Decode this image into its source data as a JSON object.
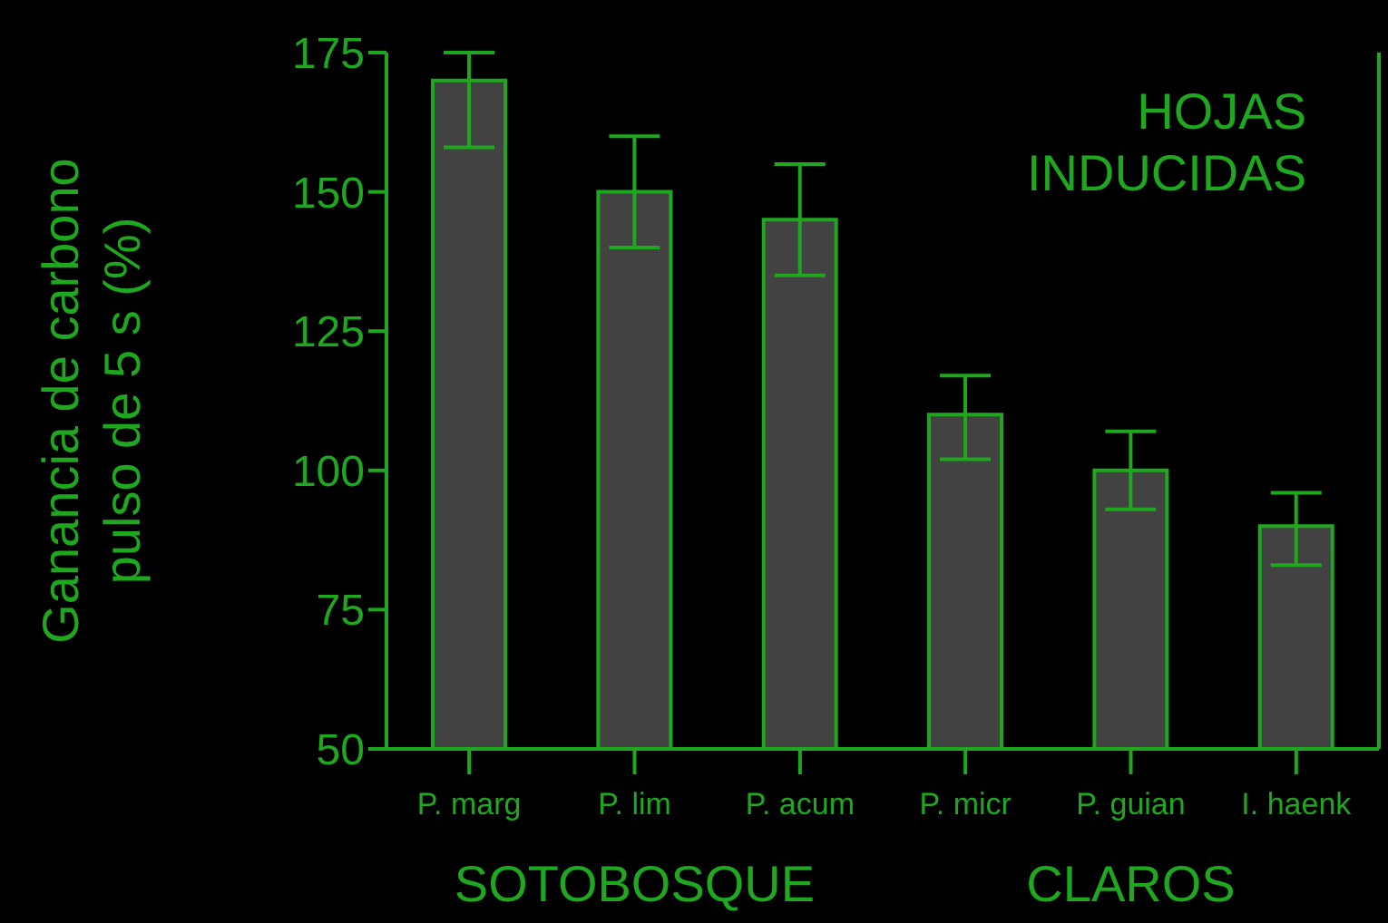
{
  "chart_data": {
    "type": "bar",
    "ylabel": "Ganancia de carbono\npulso de 5 s (%)",
    "categories": [
      "P. marg",
      "P. lim",
      "P. acum",
      "P. micr",
      "P. guian",
      "I. haenk"
    ],
    "values": [
      170,
      150,
      145,
      110,
      100,
      90
    ],
    "errors": [
      [
        158,
        175
      ],
      [
        140,
        160
      ],
      [
        135,
        155
      ],
      [
        102,
        117
      ],
      [
        93,
        107
      ],
      [
        83,
        96
      ]
    ],
    "color": "#424242",
    "ylim": [
      50,
      175
    ],
    "yticks": [
      50,
      75,
      100,
      125,
      150,
      175
    ],
    "grid": false,
    "legend": false,
    "annotations": [
      "HOJAS\nINDUCIDAS",
      "SOTOBOSQUE",
      "CLAROS"
    ]
  }
}
